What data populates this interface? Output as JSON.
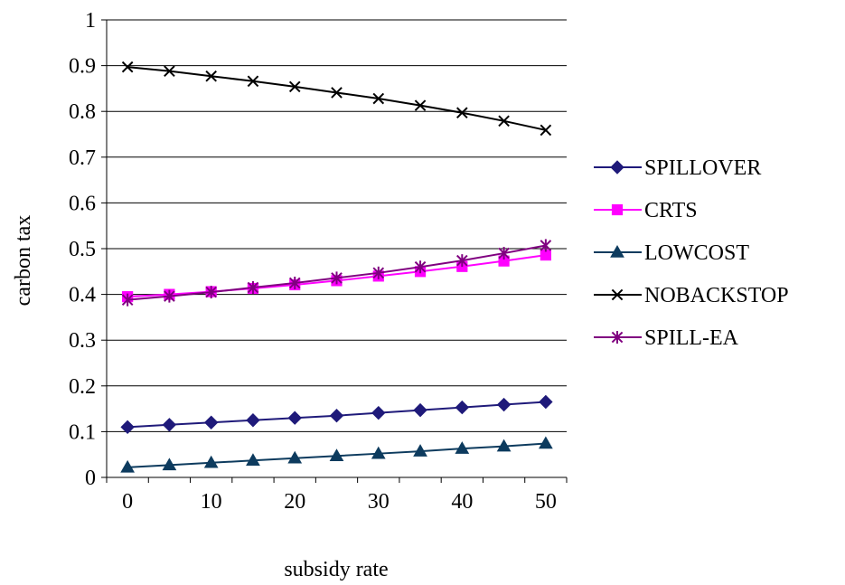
{
  "chart_data": {
    "type": "line",
    "xlabel": "subsidy rate",
    "ylabel": "carbon tax",
    "xlim": [
      -2.5,
      52.5
    ],
    "ylim": [
      0,
      1
    ],
    "x_ticks": [
      0,
      10,
      20,
      30,
      40,
      50
    ],
    "y_ticks": [
      0,
      0.1,
      0.2,
      0.3,
      0.4,
      0.5,
      0.6,
      0.7,
      0.8,
      0.9,
      1
    ],
    "y_tick_labels": [
      "0",
      "0.1",
      "0.2",
      "0.3",
      "0.4",
      "0.5",
      "0.6",
      "0.7",
      "0.8",
      "0.9",
      "1"
    ],
    "x_tick_labels": [
      "0",
      "10",
      "20",
      "30",
      "40",
      "50"
    ],
    "grid": "horizontal",
    "legend_position": "right",
    "x": [
      0,
      5,
      10,
      15,
      20,
      25,
      30,
      35,
      40,
      45,
      50
    ],
    "series": [
      {
        "name": "SPILLOVER",
        "color": "#1f1a7a",
        "marker": "diamond",
        "values": [
          0.11,
          0.115,
          0.12,
          0.125,
          0.13,
          0.135,
          0.141,
          0.147,
          0.153,
          0.159,
          0.165
        ]
      },
      {
        "name": "CRTS",
        "color": "#ff00ff",
        "marker": "square",
        "values": [
          0.395,
          0.4,
          0.406,
          0.413,
          0.421,
          0.43,
          0.44,
          0.45,
          0.461,
          0.473,
          0.486
        ]
      },
      {
        "name": "LOWCOST",
        "color": "#0d3b5e",
        "marker": "triangle",
        "values": [
          0.022,
          0.027,
          0.032,
          0.037,
          0.042,
          0.047,
          0.052,
          0.057,
          0.063,
          0.068,
          0.074
        ]
      },
      {
        "name": "NOBACKSTOP",
        "color": "#000000",
        "marker": "x",
        "values": [
          0.897,
          0.888,
          0.877,
          0.866,
          0.854,
          0.841,
          0.828,
          0.813,
          0.797,
          0.779,
          0.759
        ]
      },
      {
        "name": "SPILL-EA",
        "color": "#800080",
        "marker": "asterisk",
        "values": [
          0.388,
          0.396,
          0.405,
          0.415,
          0.425,
          0.436,
          0.447,
          0.46,
          0.474,
          0.49,
          0.507
        ]
      }
    ]
  }
}
